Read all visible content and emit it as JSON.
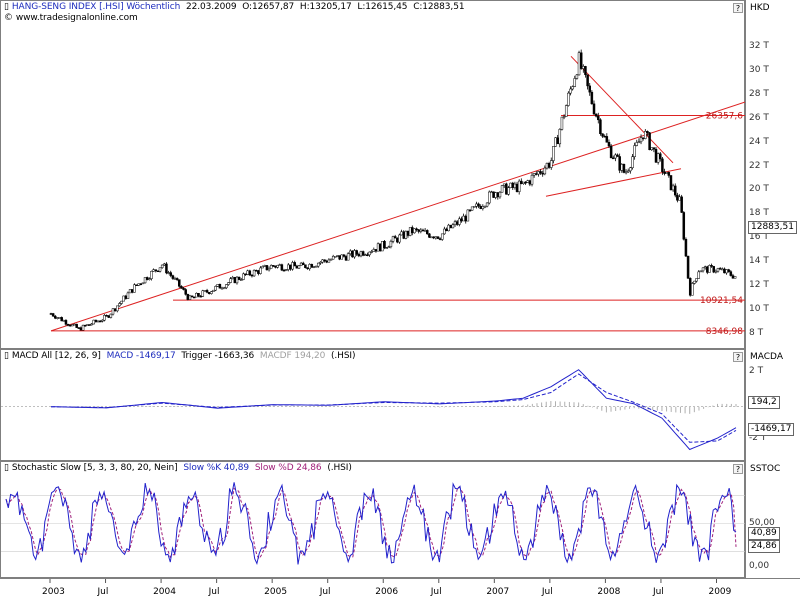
{
  "header": {
    "symbol_title": "HANG-SENG INDEX [.HSI] Wöchentlich",
    "date": "22.03.2009",
    "open": "O:12657,87",
    "high": "H:13205,17",
    "low": "L:12615,45",
    "close": "C:12883,51",
    "site": "www.tradesignalonline.com",
    "help_label": "?"
  },
  "price_axis": {
    "currency": "HKD",
    "ticks": [
      "32 T",
      "30 T",
      "28 T",
      "26 T",
      "24 T",
      "22 T",
      "20 T",
      "18 T",
      "16 T",
      "14 T",
      "12 T",
      "10 T",
      "8 T"
    ],
    "last_value": "12883,51",
    "level_labels": [
      "26357,6",
      "10921,54",
      "8346,98"
    ]
  },
  "macd_panel": {
    "legend_name": "MACD All [12, 26, 9]",
    "legend_macd": "MACD -1469,17",
    "legend_trigger": "Trigger -1663,36",
    "legend_macdf": "MACDF 194,20",
    "legend_sym": "(.HSI)",
    "axis_title": "MACDA",
    "ticks": [
      "2 T",
      "-2 T"
    ],
    "badges": [
      "194,2",
      "-1469,17"
    ]
  },
  "stoch_panel": {
    "legend_name": "Stochastic Slow [5, 3, 3, 80, 20, Nein]",
    "legend_k": "Slow %K 40,89",
    "legend_d": "Slow %D 24,86",
    "legend_sym": "(.HSI)",
    "axis_title": "SSTOC",
    "ticks": [
      "50,00",
      "0,00"
    ],
    "badges": [
      "40,89",
      "24,86"
    ]
  },
  "time_axis": {
    "labels": [
      "2003",
      "Jul",
      "2004",
      "Jul",
      "2005",
      "Jul",
      "2006",
      "Jul",
      "2007",
      "Jul",
      "2008",
      "Jul",
      "2009"
    ]
  },
  "colors": {
    "macd_line": "#2222cc",
    "trigger_line": "#2222cc",
    "trend_lines": "#dd2222",
    "candles": "#000000"
  },
  "chart_data": [
    {
      "type": "line",
      "title": "HANG-SENG INDEX [.HSI] Wöchentlich",
      "x": [
        "2003-01",
        "2003-04",
        "2003-07",
        "2003-10",
        "2004-01",
        "2004-04",
        "2004-07",
        "2004-10",
        "2005-01",
        "2005-04",
        "2005-07",
        "2005-10",
        "2006-01",
        "2006-04",
        "2006-07",
        "2006-10",
        "2007-01",
        "2007-04",
        "2007-07",
        "2007-10",
        "2007-11",
        "2008-01",
        "2008-03",
        "2008-05",
        "2008-07",
        "2008-09",
        "2008-10",
        "2008-11",
        "2009-01",
        "2009-03"
      ],
      "series": [
        {
          "name": "Close",
          "values": [
            9800,
            8500,
            9500,
            12000,
            13900,
            11000,
            12000,
            13000,
            13800,
            13700,
            14300,
            14800,
            15500,
            16700,
            16300,
            18000,
            20000,
            20500,
            22500,
            31000,
            28500,
            24000,
            21500,
            25000,
            22000,
            19000,
            11500,
            13500,
            13500,
            12883.51
          ]
        }
      ],
      "ylim": [
        7500,
        33000
      ],
      "ylabel": "HKD",
      "horizontal_levels": [
        26357.6,
        10921.54,
        8346.98
      ]
    },
    {
      "type": "line",
      "title": "MACD All [12, 26, 9]",
      "x": [
        "2003-01",
        "2003-07",
        "2004-01",
        "2004-07",
        "2005-01",
        "2005-07",
        "2006-01",
        "2006-07",
        "2007-01",
        "2007-04",
        "2007-07",
        "2007-10",
        "2008-01",
        "2008-04",
        "2008-07",
        "2008-10",
        "2009-01",
        "2009-03"
      ],
      "series": [
        {
          "name": "MACD",
          "values": [
            0,
            -80,
            300,
            -100,
            150,
            100,
            350,
            200,
            400,
            600,
            1400,
            2600,
            600,
            200,
            -800,
            -3000,
            -2200,
            -1469.17
          ]
        },
        {
          "name": "Trigger",
          "values": [
            0,
            -60,
            250,
            -50,
            120,
            120,
            300,
            250,
            350,
            500,
            1000,
            2300,
            1000,
            300,
            -500,
            -2500,
            -2400,
            -1663.36
          ]
        },
        {
          "name": "MACDF",
          "values": [
            0,
            -20,
            50,
            -50,
            30,
            -20,
            50,
            -50,
            50,
            100,
            400,
            300,
            -400,
            -100,
            -300,
            -500,
            200,
            194.2
          ]
        }
      ],
      "ylim": [
        -3600,
        3000
      ]
    },
    {
      "type": "line",
      "title": "Stochastic Slow [5, 3, 3, 80, 20, Nein]",
      "series": [
        {
          "name": "Slow %K",
          "last": 40.89
        },
        {
          "name": "Slow %D",
          "last": 24.86
        }
      ],
      "ylim": [
        0,
        100
      ]
    }
  ]
}
